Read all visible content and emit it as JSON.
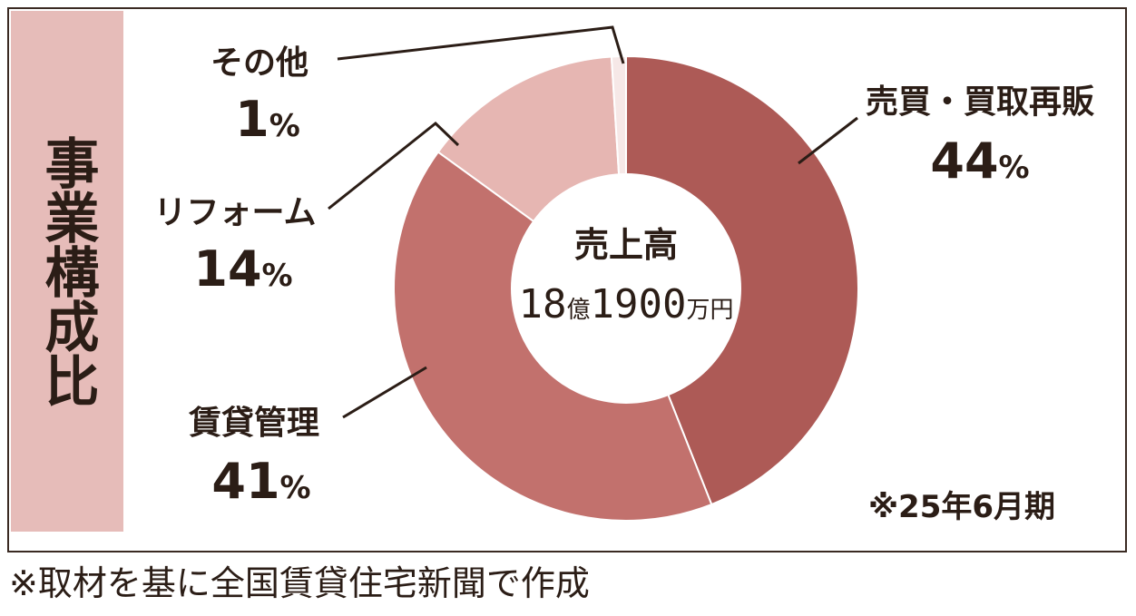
{
  "side_title": "事業構成比",
  "center": {
    "title": "売上高",
    "amount_parts": [
      "18",
      "億",
      "1900",
      "万円"
    ]
  },
  "note": "※25年6月期",
  "source": "※取材を基に全国賃貸住宅新聞で作成",
  "colors": {
    "sales_resale": "#ad5a56",
    "rental_management": "#c2716d",
    "reform": "#e6b6b2",
    "other": "#f6e8e7",
    "side_band": "#e6bcb9",
    "text": "#2b1d16"
  },
  "chart_data": {
    "type": "pie",
    "variant": "donut",
    "title": "事業構成比",
    "total_label": "売上高 18億1900万円",
    "unit": "%",
    "slices": [
      {
        "label": "売買・買取再販",
        "value": 44,
        "color": "#ad5a56"
      },
      {
        "label": "賃貸管理",
        "value": 41,
        "color": "#c2716d"
      },
      {
        "label": "リフォーム",
        "value": 14,
        "color": "#e6b6b2"
      },
      {
        "label": "その他",
        "value": 1,
        "color": "#f6e8e7"
      }
    ],
    "value_labels": [
      "44",
      "41",
      "14",
      "1"
    ],
    "percent_sign": "%"
  }
}
